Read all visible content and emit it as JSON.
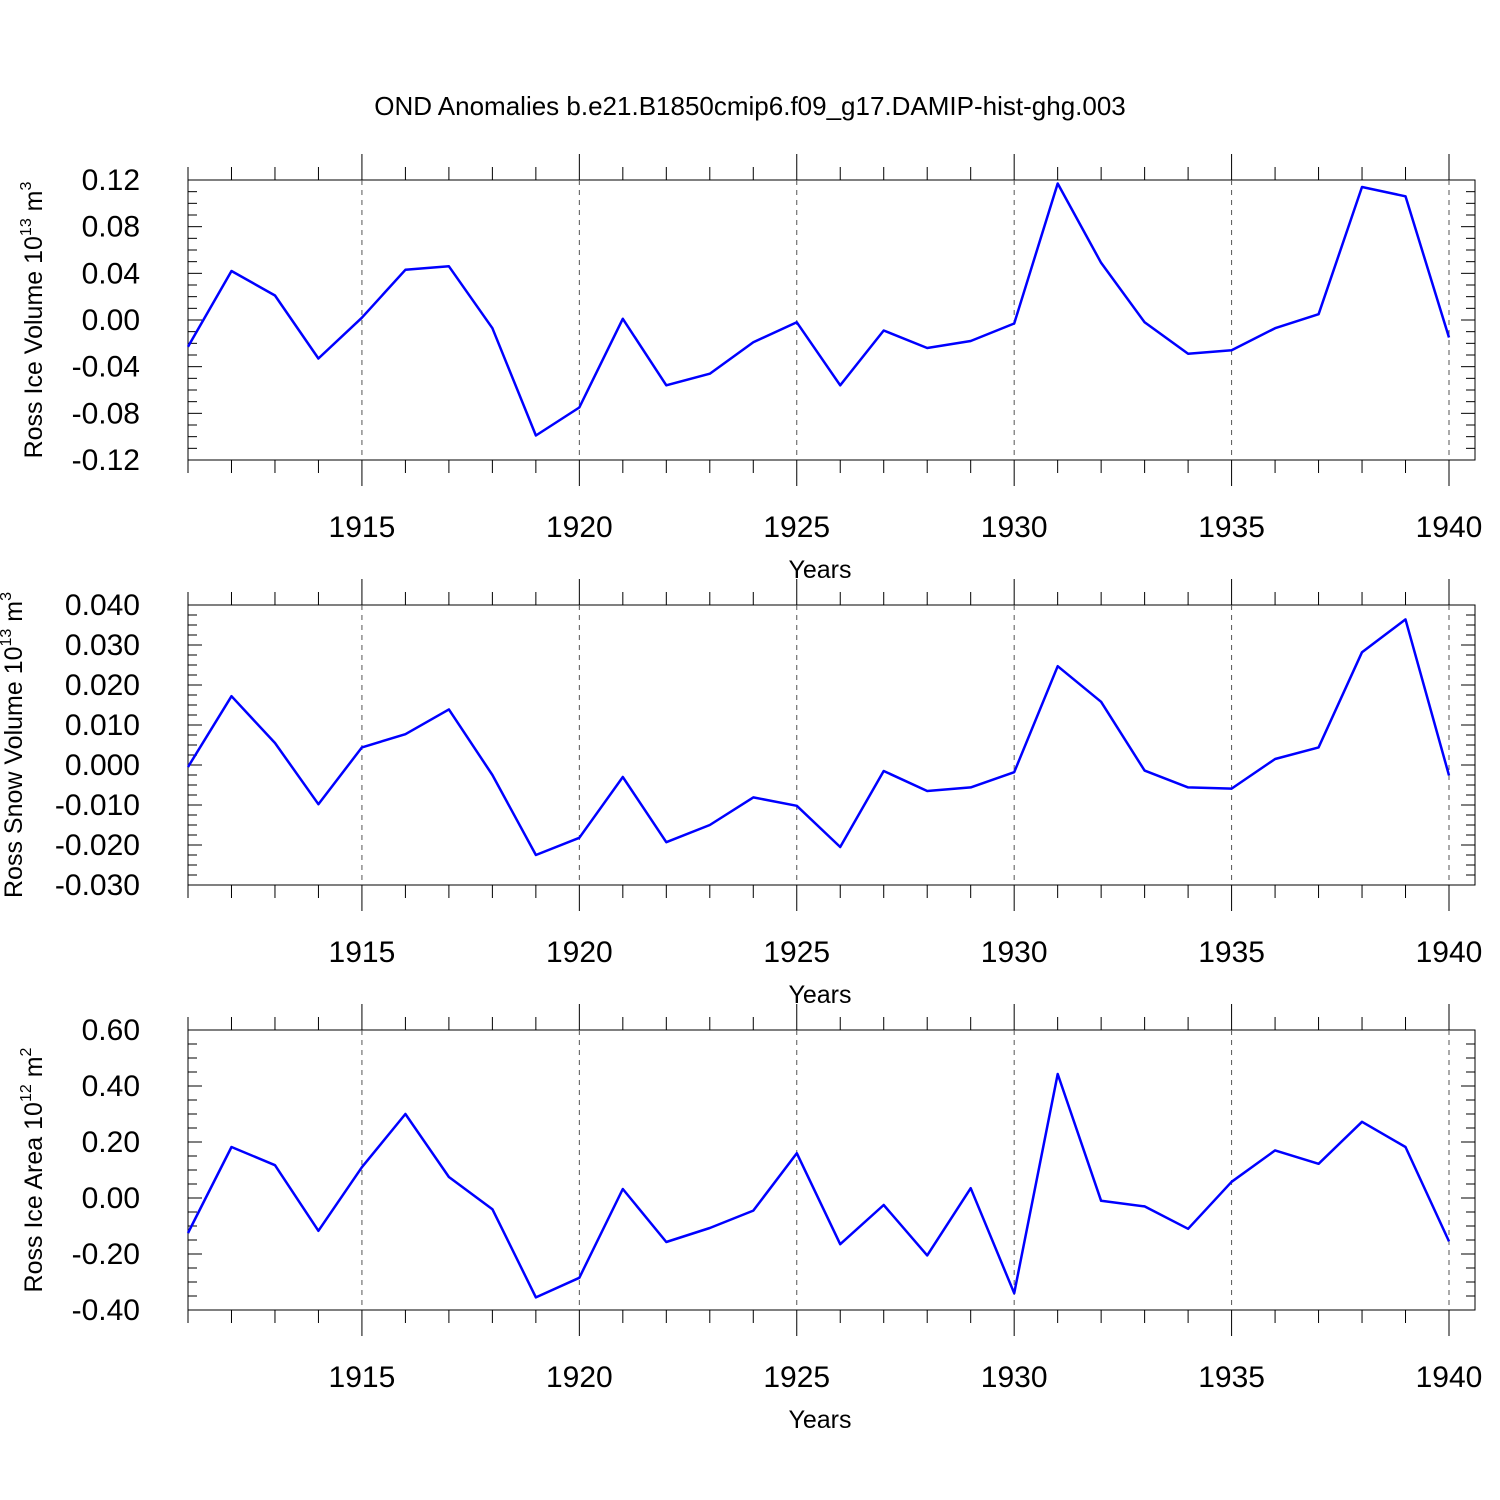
{
  "title": "OND Anomalies b.e21.B1850cmip6.f09_g17.DAMIP-hist-ghg.003",
  "chart_data": [
    {
      "type": "line",
      "ylabel": {
        "text": "Ross Ice Volume 10",
        "exp": "13",
        "unit": " m",
        "unit_exp": "3"
      },
      "xlabel": "Years",
      "xlim": [
        1911,
        1940
      ],
      "ylim": [
        -0.12,
        0.12
      ],
      "yticks": [
        "-0.12",
        "-0.08",
        "-0.04",
        "0.00",
        "0.04",
        "0.08",
        "0.12"
      ],
      "xticks": [
        "1915",
        "1920",
        "1925",
        "1930",
        "1935",
        "1940"
      ],
      "grid": "vertical dashed at major x ticks",
      "line_color": "#0000ff",
      "x": [
        1911,
        1912,
        1913,
        1914,
        1915,
        1916,
        1917,
        1918,
        1919,
        1920,
        1921,
        1922,
        1923,
        1924,
        1925,
        1926,
        1927,
        1928,
        1929,
        1930,
        1931,
        1932,
        1933,
        1934,
        1935,
        1936,
        1937,
        1938,
        1939,
        1940
      ],
      "values": [
        -0.023,
        0.042,
        0.021,
        -0.033,
        0.002,
        0.043,
        0.046,
        -0.007,
        -0.099,
        -0.075,
        0.001,
        -0.056,
        -0.046,
        -0.019,
        -0.002,
        -0.056,
        -0.009,
        -0.024,
        -0.018,
        -0.003,
        0.117,
        0.049,
        -0.002,
        -0.029,
        -0.026,
        -0.007,
        0.005,
        0.114,
        0.106,
        -0.015
      ]
    },
    {
      "type": "line",
      "ylabel": {
        "text": "Ross Snow Volume 10",
        "exp": "13",
        "unit": " m",
        "unit_exp": "3"
      },
      "xlabel": "Years",
      "xlim": [
        1911,
        1940
      ],
      "ylim": [
        -0.03,
        0.04
      ],
      "yticks": [
        "-0.030",
        "-0.020",
        "-0.010",
        "0.000",
        "0.010",
        "0.020",
        "0.030",
        "0.040"
      ],
      "xticks": [
        "1915",
        "1920",
        "1925",
        "1930",
        "1935",
        "1940"
      ],
      "grid": "vertical dashed at major x ticks",
      "line_color": "#0000ff",
      "x": [
        1911,
        1912,
        1913,
        1914,
        1915,
        1916,
        1917,
        1918,
        1919,
        1920,
        1921,
        1922,
        1923,
        1924,
        1925,
        1926,
        1927,
        1928,
        1929,
        1930,
        1931,
        1932,
        1933,
        1934,
        1935,
        1936,
        1937,
        1938,
        1939,
        1940
      ],
      "values": [
        -0.0005,
        0.0172,
        0.0055,
        -0.0098,
        0.0044,
        0.0077,
        0.0139,
        -0.0025,
        -0.0225,
        -0.0182,
        -0.003,
        -0.0193,
        -0.015,
        -0.0081,
        -0.0102,
        -0.0205,
        -0.0015,
        -0.0065,
        -0.0056,
        -0.0018,
        0.0247,
        0.0158,
        -0.0014,
        -0.0056,
        -0.0059,
        0.0015,
        0.0044,
        0.0282,
        0.0364,
        -0.0026
      ]
    },
    {
      "type": "line",
      "ylabel": {
        "text": "Ross Ice Area 10",
        "exp": "12",
        "unit": " m",
        "unit_exp": "2"
      },
      "xlabel": "Years",
      "xlim": [
        1911,
        1940
      ],
      "ylim": [
        -0.4,
        0.6
      ],
      "yticks": [
        "-0.40",
        "-0.20",
        "0.00",
        "0.20",
        "0.40",
        "0.60"
      ],
      "xticks": [
        "1915",
        "1920",
        "1925",
        "1930",
        "1935",
        "1940"
      ],
      "grid": "vertical dashed at major x ticks",
      "line_color": "#0000ff",
      "x": [
        1911,
        1912,
        1913,
        1914,
        1915,
        1916,
        1917,
        1918,
        1919,
        1920,
        1921,
        1922,
        1923,
        1924,
        1925,
        1926,
        1927,
        1928,
        1929,
        1930,
        1931,
        1932,
        1933,
        1934,
        1935,
        1936,
        1937,
        1938,
        1939,
        1940
      ],
      "values": [
        -0.125,
        0.182,
        0.117,
        -0.117,
        0.11,
        0.3,
        0.075,
        -0.04,
        -0.355,
        -0.285,
        0.032,
        -0.157,
        -0.107,
        -0.045,
        0.16,
        -0.165,
        -0.025,
        -0.205,
        0.035,
        -0.34,
        0.443,
        -0.01,
        -0.03,
        -0.11,
        0.058,
        0.17,
        0.122,
        0.272,
        0.182,
        -0.155
      ]
    }
  ]
}
